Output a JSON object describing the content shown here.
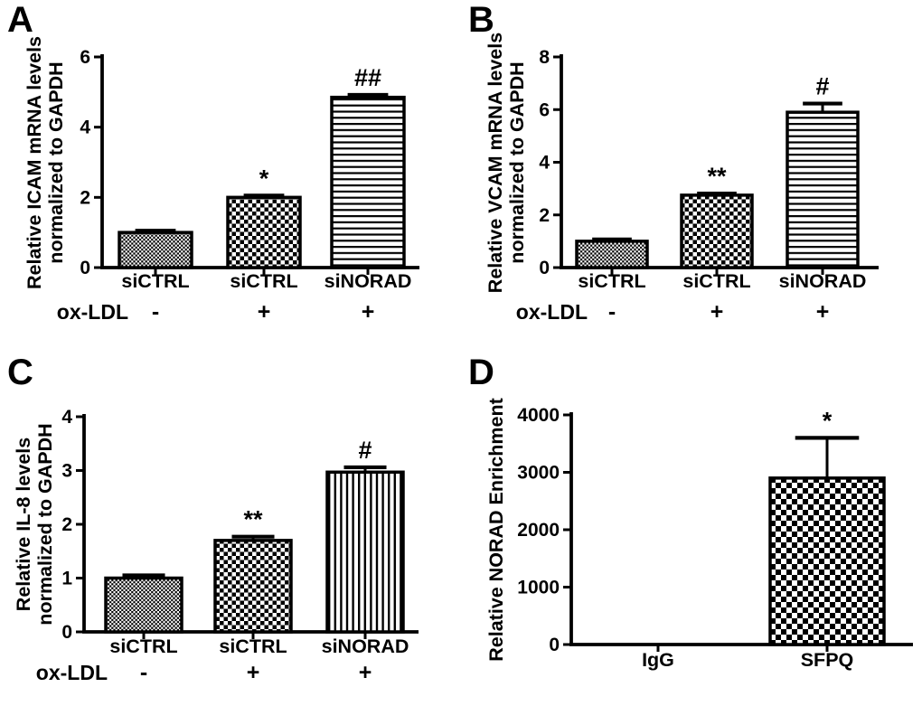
{
  "colors": {
    "ink": "#000000",
    "background": "#ffffff"
  },
  "chart_data": [
    {
      "panel": "A",
      "type": "bar",
      "ylabel_lines": [
        "Relative ICAM mRNA levels",
        "normalized to GAPDH"
      ],
      "categories": [
        "siCTRL",
        "siCTRL",
        "siNORAD"
      ],
      "values": [
        1.0,
        2.0,
        4.85
      ],
      "errors_plus": [
        0.05,
        0.05,
        0.07
      ],
      "significance": [
        "",
        "*",
        "##"
      ],
      "bar_patterns": [
        "fine-checker",
        "checker",
        "hlines"
      ],
      "ylim": [
        0,
        6
      ],
      "yticks": [
        0,
        2,
        4,
        6
      ],
      "condition_label": "ox-LDL",
      "condition_values": [
        "-",
        "+",
        "+"
      ],
      "grid": false,
      "legend": false
    },
    {
      "panel": "B",
      "type": "bar",
      "ylabel_lines": [
        "Relative VCAM mRNA levels",
        "normalized to GAPDH"
      ],
      "categories": [
        "siCTRL",
        "siCTRL",
        "siNORAD"
      ],
      "values": [
        1.0,
        2.75,
        5.9
      ],
      "errors_plus": [
        0.07,
        0.06,
        0.33
      ],
      "significance": [
        "",
        "**",
        "#"
      ],
      "bar_patterns": [
        "fine-checker",
        "checker",
        "hlines"
      ],
      "ylim": [
        0,
        8
      ],
      "yticks": [
        0,
        2,
        4,
        6,
        8
      ],
      "condition_label": "ox-LDL",
      "condition_values": [
        "-",
        "+",
        "+"
      ],
      "grid": false,
      "legend": false
    },
    {
      "panel": "C",
      "type": "bar",
      "ylabel_lines": [
        "Relative IL-8 levels",
        "normalized to GAPDH"
      ],
      "categories": [
        "siCTRL",
        "siCTRL",
        "siNORAD"
      ],
      "values": [
        1.0,
        1.7,
        2.97
      ],
      "errors_plus": [
        0.05,
        0.07,
        0.09
      ],
      "significance": [
        "",
        "**",
        "#"
      ],
      "bar_patterns": [
        "fine-checker",
        "checker",
        "vlines"
      ],
      "ylim": [
        0,
        4
      ],
      "yticks": [
        0,
        1,
        2,
        3,
        4
      ],
      "condition_label": "ox-LDL",
      "condition_values": [
        "-",
        "+",
        "+"
      ],
      "grid": false,
      "legend": false
    },
    {
      "panel": "D",
      "type": "bar",
      "ylabel_lines": [
        "Relative NORAD Enrichment"
      ],
      "categories": [
        "IgG",
        "SFPQ"
      ],
      "values": [
        0,
        2900
      ],
      "errors_plus": [
        0,
        700
      ],
      "significance": [
        "",
        "*"
      ],
      "bar_patterns": [
        "none",
        "checker-large"
      ],
      "ylim": [
        0,
        4000
      ],
      "yticks": [
        0,
        1000,
        2000,
        3000,
        4000
      ],
      "condition_label": null,
      "condition_values": null,
      "grid": false,
      "legend": false
    }
  ]
}
